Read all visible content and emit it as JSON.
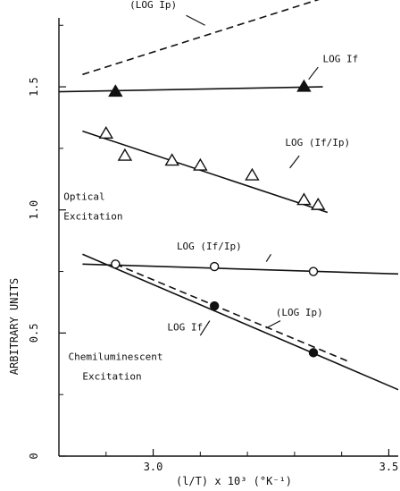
{
  "chart_data": {
    "type": "scatter",
    "xlabel": "(l/T) x 10³ (°K⁻¹)",
    "ylabel": "ARBITRARY  UNITS",
    "xlim": [
      2.8,
      3.52
    ],
    "ylim": [
      0,
      1.78
    ],
    "x_ticks": [
      3.0,
      3.5
    ],
    "x_tick_labels": [
      "3.0",
      "3.5"
    ],
    "y_ticks": [
      0,
      0.5,
      1.0,
      1.5
    ],
    "y_tick_labels": [
      "0",
      "0.5",
      "1.0",
      "1.5"
    ],
    "grid": false,
    "legend": "none",
    "series": [
      {
        "name": "(LOG Ip)",
        "style": "dashed",
        "marker": "none",
        "line": [
          [
            2.85,
            1.55
          ],
          [
            3.36,
            1.86
          ]
        ],
        "points": []
      },
      {
        "name": "LOG If",
        "style": "solid",
        "marker": "filled-triangle",
        "line": [
          [
            2.8,
            1.48
          ],
          [
            3.36,
            1.5
          ]
        ],
        "points": [
          [
            2.92,
            1.48
          ],
          [
            3.32,
            1.5
          ]
        ]
      },
      {
        "name": "LOG (If/Ip)",
        "style": "solid",
        "marker": "open-triangle",
        "line": [
          [
            2.85,
            1.32
          ],
          [
            3.37,
            0.99
          ]
        ],
        "points": [
          [
            2.9,
            1.31
          ],
          [
            2.94,
            1.22
          ],
          [
            3.04,
            1.2
          ],
          [
            3.1,
            1.18
          ],
          [
            3.21,
            1.14
          ],
          [
            3.32,
            1.04
          ],
          [
            3.35,
            1.02
          ]
        ]
      },
      {
        "name": "LOG (If/Ip)",
        "style": "solid",
        "marker": "open-circle",
        "line": [
          [
            2.85,
            0.78
          ],
          [
            3.52,
            0.74
          ]
        ],
        "points": [
          [
            2.92,
            0.78
          ],
          [
            3.13,
            0.77
          ],
          [
            3.34,
            0.75
          ]
        ]
      },
      {
        "name": "(LOG Ip)",
        "style": "dashed",
        "marker": "none",
        "line": [
          [
            2.92,
            0.78
          ],
          [
            3.42,
            0.38
          ]
        ],
        "points": []
      },
      {
        "name": "LOG If",
        "style": "solid",
        "marker": "filled-circle",
        "line": [
          [
            2.85,
            0.82
          ],
          [
            3.52,
            0.27
          ]
        ],
        "points": [
          [
            3.13,
            0.61
          ],
          [
            3.34,
            0.42
          ]
        ]
      }
    ],
    "annotations": [
      {
        "text": "(LOG Ip)",
        "x": 2.95,
        "y": 1.82
      },
      {
        "text": "LOG If",
        "x": 3.36,
        "y": 1.6
      },
      {
        "text": "LOG (If/Ip)",
        "x": 3.28,
        "y": 1.26
      },
      {
        "text": "Optical",
        "x": 2.81,
        "y": 1.04
      },
      {
        "text": "Excitation",
        "x": 2.81,
        "y": 0.96
      },
      {
        "text": "LOG (If/Ip)",
        "x": 3.05,
        "y": 0.84
      },
      {
        "text": "LOG If",
        "x": 3.03,
        "y": 0.51
      },
      {
        "text": "(LOG Ip)",
        "x": 3.26,
        "y": 0.57
      },
      {
        "text": "Chemiluminescent",
        "x": 2.82,
        "y": 0.39
      },
      {
        "text": "Excitation",
        "x": 2.85,
        "y": 0.31
      }
    ]
  }
}
